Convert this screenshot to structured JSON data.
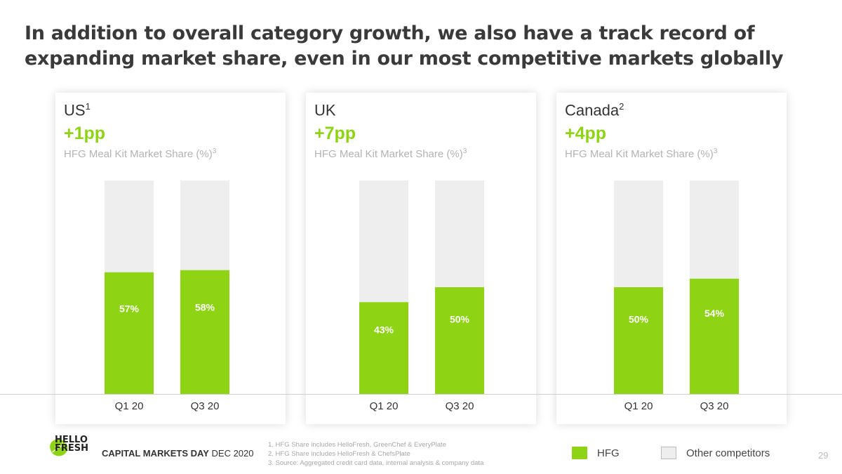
{
  "title": "In addition to overall category growth, we also have a track record of expanding market share, even in our most competitive markets globally",
  "colors": {
    "hfg": "#8ed414",
    "other": "#eeeeee",
    "delta": "#8ed414"
  },
  "panels": [
    {
      "country": "US",
      "sup": "1",
      "delta": "+1pp",
      "metric": "HFG Meal Kit Market Share (%)",
      "metric_sup": "3"
    },
    {
      "country": "UK",
      "sup": "",
      "delta": "+7pp",
      "metric": "HFG Meal Kit Market Share (%)",
      "metric_sup": "3"
    },
    {
      "country": "Canada",
      "sup": "2",
      "delta": "+4pp",
      "metric": "HFG Meal Kit Market Share (%)",
      "metric_sup": "3"
    }
  ],
  "chart_data": [
    {
      "type": "bar",
      "stacked": true,
      "ylim": [
        0,
        100
      ],
      "categories": [
        "Q1 20",
        "Q3 20"
      ],
      "series": [
        {
          "name": "HFG",
          "values": [
            57,
            58
          ],
          "labels": [
            "57%",
            "58%"
          ]
        },
        {
          "name": "Other competitors",
          "values": [
            43,
            42
          ]
        }
      ]
    },
    {
      "type": "bar",
      "stacked": true,
      "ylim": [
        0,
        100
      ],
      "categories": [
        "Q1 20",
        "Q3 20"
      ],
      "series": [
        {
          "name": "HFG",
          "values": [
            43,
            50
          ],
          "labels": [
            "43%",
            "50%"
          ]
        },
        {
          "name": "Other competitors",
          "values": [
            57,
            50
          ]
        }
      ]
    },
    {
      "type": "bar",
      "stacked": true,
      "ylim": [
        0,
        100
      ],
      "categories": [
        "Q1 20",
        "Q3 20"
      ],
      "series": [
        {
          "name": "HFG",
          "values": [
            50,
            54
          ],
          "labels": [
            "50%",
            "54%"
          ]
        },
        {
          "name": "Other competitors",
          "values": [
            50,
            46
          ]
        }
      ]
    }
  ],
  "legend": {
    "hfg_label": "HFG",
    "other_label": "Other competitors"
  },
  "footer": {
    "logo_line1": "HELLO",
    "logo_line2": "FRESH",
    "event_bold": "CAPITAL MARKETS DAY",
    "event_date": "DEC 2020",
    "footnotes": [
      "1. HFG Share includes HelloFresh, GreenChef & EveryPlate",
      "2. HFG Share includes HelloFresh & ChefsPlate",
      "3. Source: Aggregated credit card data, internal analysis & company data"
    ],
    "page_number": "29"
  }
}
